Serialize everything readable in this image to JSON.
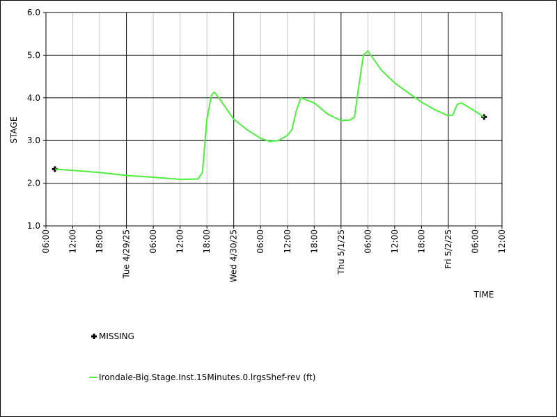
{
  "chart_data": {
    "type": "line",
    "x_label": "TIME",
    "y_label": "STAGE",
    "xlim": [
      "2025-04-28T06:00",
      "2025-05-02T12:00"
    ],
    "ylim": [
      1,
      6
    ],
    "yticks": [
      {
        "value": 1,
        "label": "1.0"
      },
      {
        "value": 2,
        "label": "2.0"
      },
      {
        "value": 3,
        "label": "3.0"
      },
      {
        "value": 4,
        "label": "4.0"
      },
      {
        "value": 5,
        "label": "5.0"
      },
      {
        "value": 6,
        "label": "6.0"
      }
    ],
    "xticks": [
      {
        "value": "2025-04-28T06:00",
        "label": "06:00"
      },
      {
        "value": "2025-04-28T12:00",
        "label": "12:00"
      },
      {
        "value": "2025-04-28T18:00",
        "label": "18:00"
      },
      {
        "value": "2025-04-29T00:00",
        "label": "Tue 4/29/25"
      },
      {
        "value": "2025-04-29T06:00",
        "label": "06:00"
      },
      {
        "value": "2025-04-29T12:00",
        "label": "12:00"
      },
      {
        "value": "2025-04-29T18:00",
        "label": "18:00"
      },
      {
        "value": "2025-04-30T00:00",
        "label": "Wed 4/30/25"
      },
      {
        "value": "2025-04-30T06:00",
        "label": "06:00"
      },
      {
        "value": "2025-04-30T12:00",
        "label": "12:00"
      },
      {
        "value": "2025-04-30T18:00",
        "label": "18:00"
      },
      {
        "value": "2025-05-01T00:00",
        "label": "Thu 5/1/25"
      },
      {
        "value": "2025-05-01T06:00",
        "label": "06:00"
      },
      {
        "value": "2025-05-01T12:00",
        "label": "12:00"
      },
      {
        "value": "2025-05-01T18:00",
        "label": "18:00"
      },
      {
        "value": "2025-05-02T00:00",
        "label": "Fri 5/2/25"
      },
      {
        "value": "2025-05-02T06:00",
        "label": "06:00"
      },
      {
        "value": "2025-05-02T12:00",
        "label": "12:00"
      }
    ],
    "grid": true,
    "series": [
      {
        "name": "MISSING",
        "color": "#000000",
        "marker": "plus",
        "x": [
          "2025-04-28T08:00",
          "2025-05-02T08:00"
        ],
        "values": [
          2.33,
          3.55
        ]
      },
      {
        "name": "Irondale-Big.Stage.Inst.15Minutes.0.lrgsShef-rev (ft)",
        "color": "#4cf03c",
        "marker": "line",
        "x": [
          "2025-04-28T08:00",
          "2025-04-28T12:00",
          "2025-04-28T18:00",
          "2025-04-29T00:00",
          "2025-04-29T06:00",
          "2025-04-29T12:00",
          "2025-04-29T16:00",
          "2025-04-29T17:00",
          "2025-04-29T18:00",
          "2025-04-29T19:00",
          "2025-04-29T19:30",
          "2025-04-29T20:00",
          "2025-04-29T22:00",
          "2025-04-30T00:00",
          "2025-04-30T03:00",
          "2025-04-30T06:00",
          "2025-04-30T08:00",
          "2025-04-30T10:00",
          "2025-04-30T12:00",
          "2025-04-30T13:00",
          "2025-04-30T14:00",
          "2025-04-30T15:00",
          "2025-04-30T18:00",
          "2025-04-30T21:00",
          "2025-05-01T00:00",
          "2025-05-01T02:00",
          "2025-05-01T03:00",
          "2025-05-01T04:00",
          "2025-05-01T05:00",
          "2025-05-01T06:00",
          "2025-05-01T07:00",
          "2025-05-01T09:00",
          "2025-05-01T12:00",
          "2025-05-01T15:00",
          "2025-05-01T18:00",
          "2025-05-01T21:00",
          "2025-05-02T00:00",
          "2025-05-02T01:00",
          "2025-05-02T02:00",
          "2025-05-02T03:00",
          "2025-05-02T05:00",
          "2025-05-02T08:00"
        ],
        "values": [
          2.33,
          2.3,
          2.25,
          2.18,
          2.14,
          2.09,
          2.1,
          2.25,
          3.5,
          4.05,
          4.13,
          4.1,
          3.8,
          3.5,
          3.25,
          3.05,
          2.98,
          3.0,
          3.12,
          3.25,
          3.7,
          4.0,
          3.88,
          3.62,
          3.47,
          3.48,
          3.55,
          4.3,
          5.0,
          5.1,
          4.95,
          4.65,
          4.35,
          4.12,
          3.9,
          3.72,
          3.58,
          3.6,
          3.85,
          3.88,
          3.75,
          3.55
        ]
      }
    ]
  }
}
